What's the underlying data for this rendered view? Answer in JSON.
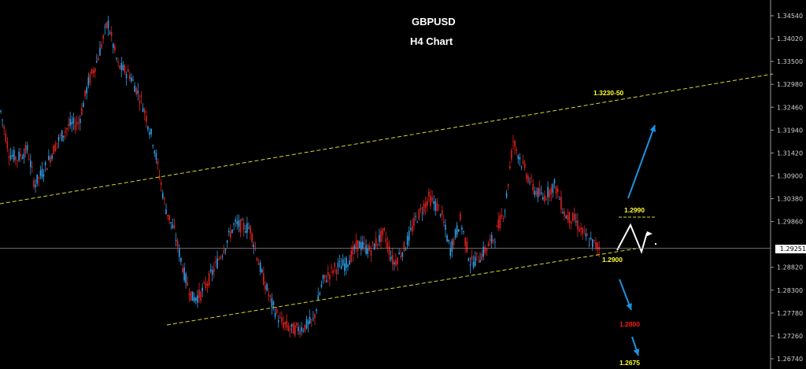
{
  "chart_data": {
    "type": "candlestick",
    "title": "GBPUSD",
    "subtitle": "H4 Chart",
    "background": "#000000",
    "colors": {
      "bull": "#2e9ee8",
      "bear": "#e02020",
      "trendline": "#d8d830",
      "arrow": "#1e90e0",
      "label_yellow": "#ffff33",
      "label_red": "#ff1a1a",
      "axis": "#9e9e9e",
      "price_line": "#8a8a8a"
    },
    "y_axis": {
      "min": 1.265,
      "max": 1.3485,
      "ticks": [
        "1.34540",
        "1.34020",
        "1.33500",
        "1.32980",
        "1.32460",
        "1.31940",
        "1.31420",
        "1.30900",
        "1.30380",
        "1.29860",
        "1.28820",
        "1.28300",
        "1.27780",
        "1.27260",
        "1.26740"
      ]
    },
    "current_price": "1.29251",
    "annotations": [
      {
        "label": "1.3230-50",
        "color": "yellow"
      },
      {
        "label": "1.2990",
        "color": "yellow"
      },
      {
        "label": "1.2900",
        "color": "yellow"
      },
      {
        "label": "1.2800",
        "color": "red"
      },
      {
        "label": "1.2675",
        "color": "yellow"
      }
    ],
    "grid": false
  }
}
